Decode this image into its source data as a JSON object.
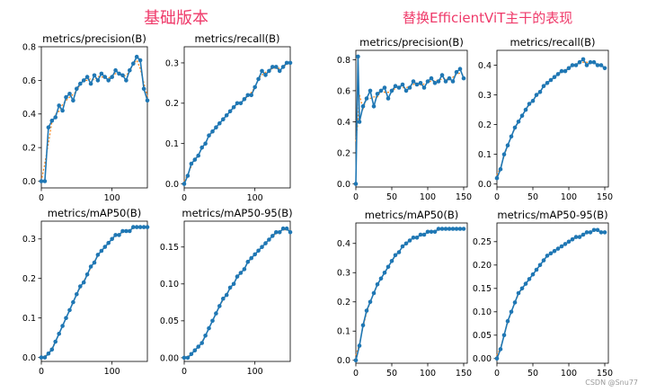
{
  "headings": {
    "left": "基础版本",
    "right": "替换EfficientViT主干的表现"
  },
  "watermark": "CSDN @Snu77",
  "colors": {
    "heading": "#ef3a6a",
    "series": "#1f77b4",
    "smooth": "#ff7f0e"
  },
  "chart_data": [
    {
      "type": "line",
      "group": "left",
      "title": "metrics/precision(B)",
      "xlabel": "",
      "ylabel": "",
      "xlim": [
        0,
        150
      ],
      "ylim": [
        -0.04,
        0.8
      ],
      "xticks": [
        0,
        100
      ],
      "yticks": [
        0.0,
        0.2,
        0.4,
        0.6,
        0.8
      ],
      "ytick_labels": [
        "0.0",
        "0.2",
        "0.4",
        "0.6",
        "0.8"
      ],
      "series": [
        {
          "x": [
            0,
            5,
            10,
            15,
            20,
            25,
            30,
            35,
            40,
            45,
            50,
            55,
            60,
            65,
            70,
            75,
            80,
            85,
            90,
            95,
            100,
            105,
            110,
            115,
            120,
            125,
            130,
            135,
            140,
            145,
            150
          ],
          "y": [
            0.0,
            0.0,
            0.32,
            0.36,
            0.38,
            0.45,
            0.42,
            0.5,
            0.52,
            0.48,
            0.55,
            0.58,
            0.6,
            0.62,
            0.58,
            0.63,
            0.6,
            0.64,
            0.62,
            0.6,
            0.62,
            0.66,
            0.64,
            0.63,
            0.6,
            0.66,
            0.7,
            0.74,
            0.72,
            0.55,
            0.48
          ]
        }
      ]
    },
    {
      "type": "line",
      "group": "left",
      "title": "metrics/recall(B)",
      "xlabel": "",
      "ylabel": "",
      "xlim": [
        0,
        150
      ],
      "ylim": [
        -0.01,
        0.34
      ],
      "xticks": [
        0,
        100
      ],
      "yticks": [
        0.0,
        0.1,
        0.2,
        0.3
      ],
      "ytick_labels": [
        "0.0",
        "0.1",
        "0.2",
        "0.3"
      ],
      "series": [
        {
          "x": [
            0,
            5,
            10,
            15,
            20,
            25,
            30,
            35,
            40,
            45,
            50,
            55,
            60,
            65,
            70,
            75,
            80,
            85,
            90,
            95,
            100,
            105,
            110,
            115,
            120,
            125,
            130,
            135,
            140,
            145,
            150
          ],
          "y": [
            0.0,
            0.02,
            0.05,
            0.06,
            0.07,
            0.09,
            0.1,
            0.12,
            0.13,
            0.14,
            0.15,
            0.16,
            0.17,
            0.18,
            0.19,
            0.2,
            0.2,
            0.21,
            0.22,
            0.22,
            0.24,
            0.26,
            0.28,
            0.27,
            0.28,
            0.29,
            0.29,
            0.28,
            0.29,
            0.3,
            0.3
          ]
        }
      ]
    },
    {
      "type": "line",
      "group": "left",
      "title": "metrics/mAP50(B)",
      "xlabel": "",
      "ylabel": "",
      "xlim": [
        0,
        150
      ],
      "ylim": [
        -0.01,
        0.345
      ],
      "xticks": [
        0,
        100
      ],
      "yticks": [
        0.0,
        0.1,
        0.2,
        0.3
      ],
      "ytick_labels": [
        "0.0",
        "0.1",
        "0.2",
        "0.3"
      ],
      "series": [
        {
          "x": [
            0,
            5,
            10,
            15,
            20,
            25,
            30,
            35,
            40,
            45,
            50,
            55,
            60,
            65,
            70,
            75,
            80,
            85,
            90,
            95,
            100,
            105,
            110,
            115,
            120,
            125,
            130,
            135,
            140,
            145,
            150
          ],
          "y": [
            0.0,
            0.0,
            0.01,
            0.02,
            0.04,
            0.06,
            0.08,
            0.1,
            0.12,
            0.14,
            0.16,
            0.18,
            0.19,
            0.21,
            0.23,
            0.24,
            0.26,
            0.27,
            0.28,
            0.29,
            0.3,
            0.31,
            0.31,
            0.32,
            0.32,
            0.32,
            0.33,
            0.33,
            0.33,
            0.33,
            0.33
          ]
        }
      ]
    },
    {
      "type": "line",
      "group": "left",
      "title": "metrics/mAP50-95(B)",
      "xlabel": "",
      "ylabel": "",
      "xlim": [
        0,
        150
      ],
      "ylim": [
        -0.005,
        0.185
      ],
      "xticks": [
        0,
        100
      ],
      "yticks": [
        0.0,
        0.05,
        0.1,
        0.15
      ],
      "ytick_labels": [
        "0.00",
        "0.05",
        "0.10",
        "0.15"
      ],
      "series": [
        {
          "x": [
            0,
            5,
            10,
            15,
            20,
            25,
            30,
            35,
            40,
            45,
            50,
            55,
            60,
            65,
            70,
            75,
            80,
            85,
            90,
            95,
            100,
            105,
            110,
            115,
            120,
            125,
            130,
            135,
            140,
            145,
            150
          ],
          "y": [
            0.0,
            0.0,
            0.005,
            0.01,
            0.015,
            0.02,
            0.03,
            0.04,
            0.05,
            0.06,
            0.07,
            0.08,
            0.085,
            0.095,
            0.1,
            0.11,
            0.115,
            0.12,
            0.13,
            0.135,
            0.14,
            0.145,
            0.15,
            0.155,
            0.16,
            0.165,
            0.17,
            0.17,
            0.175,
            0.175,
            0.17
          ]
        }
      ]
    },
    {
      "type": "line",
      "group": "right",
      "title": "metrics/precision(B)",
      "xlabel": "",
      "ylabel": "",
      "xlim": [
        0,
        155
      ],
      "ylim": [
        -0.02,
        0.86
      ],
      "xticks": [
        0,
        50,
        100,
        150
      ],
      "yticks": [
        0.0,
        0.2,
        0.4,
        0.6,
        0.8
      ],
      "ytick_labels": [
        "0.0",
        "0.2",
        "0.4",
        "0.6",
        "0.8"
      ],
      "series": [
        {
          "x": [
            0,
            3,
            5,
            10,
            15,
            20,
            25,
            30,
            35,
            40,
            45,
            50,
            55,
            60,
            65,
            70,
            75,
            80,
            85,
            90,
            95,
            100,
            105,
            110,
            115,
            120,
            125,
            130,
            135,
            140,
            145,
            150
          ],
          "y": [
            0.0,
            0.82,
            0.4,
            0.5,
            0.55,
            0.6,
            0.5,
            0.58,
            0.6,
            0.62,
            0.55,
            0.6,
            0.63,
            0.62,
            0.64,
            0.6,
            0.62,
            0.66,
            0.64,
            0.65,
            0.62,
            0.66,
            0.68,
            0.65,
            0.66,
            0.7,
            0.66,
            0.68,
            0.66,
            0.72,
            0.74,
            0.68
          ]
        }
      ]
    },
    {
      "type": "line",
      "group": "right",
      "title": "metrics/recall(B)",
      "xlabel": "",
      "ylabel": "",
      "xlim": [
        0,
        155
      ],
      "ylim": [
        -0.01,
        0.45
      ],
      "xticks": [
        0,
        50,
        100,
        150
      ],
      "yticks": [
        0.0,
        0.1,
        0.2,
        0.3,
        0.4
      ],
      "ytick_labels": [
        "0.0",
        "0.1",
        "0.2",
        "0.3",
        "0.4"
      ],
      "series": [
        {
          "x": [
            0,
            5,
            10,
            15,
            20,
            25,
            30,
            35,
            40,
            45,
            50,
            55,
            60,
            65,
            70,
            75,
            80,
            85,
            90,
            95,
            100,
            105,
            110,
            115,
            120,
            125,
            130,
            135,
            140,
            145,
            150
          ],
          "y": [
            0.02,
            0.05,
            0.1,
            0.13,
            0.16,
            0.19,
            0.21,
            0.23,
            0.25,
            0.27,
            0.28,
            0.3,
            0.31,
            0.33,
            0.34,
            0.35,
            0.36,
            0.37,
            0.38,
            0.38,
            0.39,
            0.4,
            0.4,
            0.41,
            0.42,
            0.4,
            0.41,
            0.41,
            0.4,
            0.4,
            0.39
          ]
        }
      ]
    },
    {
      "type": "line",
      "group": "right",
      "title": "metrics/mAP50(B)",
      "xlabel": "",
      "ylabel": "",
      "xlim": [
        0,
        155
      ],
      "ylim": [
        -0.01,
        0.47
      ],
      "xticks": [
        0,
        50,
        100,
        150
      ],
      "yticks": [
        0.0,
        0.1,
        0.2,
        0.3,
        0.4
      ],
      "ytick_labels": [
        "0.0",
        "0.1",
        "0.2",
        "0.3",
        "0.4"
      ],
      "series": [
        {
          "x": [
            0,
            5,
            10,
            15,
            20,
            25,
            30,
            35,
            40,
            45,
            50,
            55,
            60,
            65,
            70,
            75,
            80,
            85,
            90,
            95,
            100,
            105,
            110,
            115,
            120,
            125,
            130,
            135,
            140,
            145,
            150
          ],
          "y": [
            0.0,
            0.05,
            0.12,
            0.17,
            0.2,
            0.23,
            0.26,
            0.28,
            0.3,
            0.32,
            0.34,
            0.36,
            0.37,
            0.39,
            0.4,
            0.41,
            0.42,
            0.42,
            0.43,
            0.43,
            0.44,
            0.44,
            0.44,
            0.45,
            0.45,
            0.45,
            0.45,
            0.45,
            0.45,
            0.45,
            0.45
          ]
        }
      ]
    },
    {
      "type": "line",
      "group": "right",
      "title": "metrics/mAP50-95(B)",
      "xlabel": "",
      "ylabel": "",
      "xlim": [
        0,
        155
      ],
      "ylim": [
        -0.01,
        0.29
      ],
      "xticks": [
        0,
        50,
        100,
        150
      ],
      "yticks": [
        0.0,
        0.05,
        0.1,
        0.15,
        0.2,
        0.25
      ],
      "ytick_labels": [
        "0.00",
        "0.05",
        "0.10",
        "0.15",
        "0.20",
        "0.25"
      ],
      "series": [
        {
          "x": [
            0,
            5,
            10,
            15,
            20,
            25,
            30,
            35,
            40,
            45,
            50,
            55,
            60,
            65,
            70,
            75,
            80,
            85,
            90,
            95,
            100,
            105,
            110,
            115,
            120,
            125,
            130,
            135,
            140,
            145,
            150
          ],
          "y": [
            0.0,
            0.02,
            0.05,
            0.08,
            0.1,
            0.12,
            0.14,
            0.15,
            0.16,
            0.17,
            0.18,
            0.19,
            0.2,
            0.21,
            0.22,
            0.225,
            0.23,
            0.235,
            0.24,
            0.245,
            0.25,
            0.255,
            0.26,
            0.26,
            0.265,
            0.27,
            0.27,
            0.275,
            0.275,
            0.27,
            0.27
          ]
        }
      ]
    }
  ]
}
